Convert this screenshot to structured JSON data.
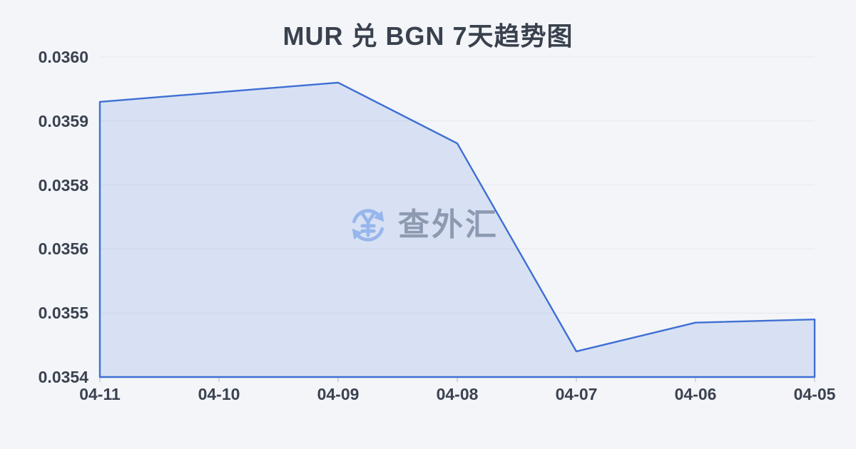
{
  "page": {
    "background_color": "#f3f5f8"
  },
  "chart_data": {
    "type": "area",
    "title": "MUR 兑 BGN 7天趋势图",
    "categories": [
      "04-11",
      "04-10",
      "04-09",
      "04-08",
      "04-07",
      "04-06",
      "04-05"
    ],
    "values": [
      0.03593,
      0.035945,
      0.03596,
      0.035865,
      0.03544,
      0.035485,
      0.03549
    ],
    "y_tick_labels": [
      "0.0360",
      "0.0359",
      "0.0358",
      "0.0356",
      "0.0355",
      "0.0354"
    ],
    "ylim": [
      0.0354,
      0.036
    ],
    "xlabel": "",
    "ylabel": "",
    "grid": "horizontal",
    "legend": "none",
    "colors": {
      "line": "#3f6fd4",
      "fill": "rgba(67,116,214,0.15)",
      "gridline": "#e4e7ec",
      "axis_tick_mark": "#c9cdd5",
      "title_text": "#39414e",
      "axis_text": "#3b4250"
    }
  },
  "watermark": {
    "text": "查外汇",
    "icon": "currency-exchange-icon",
    "colors": {
      "text": "#9aa1ab",
      "icon": "#a6c2f0"
    }
  }
}
